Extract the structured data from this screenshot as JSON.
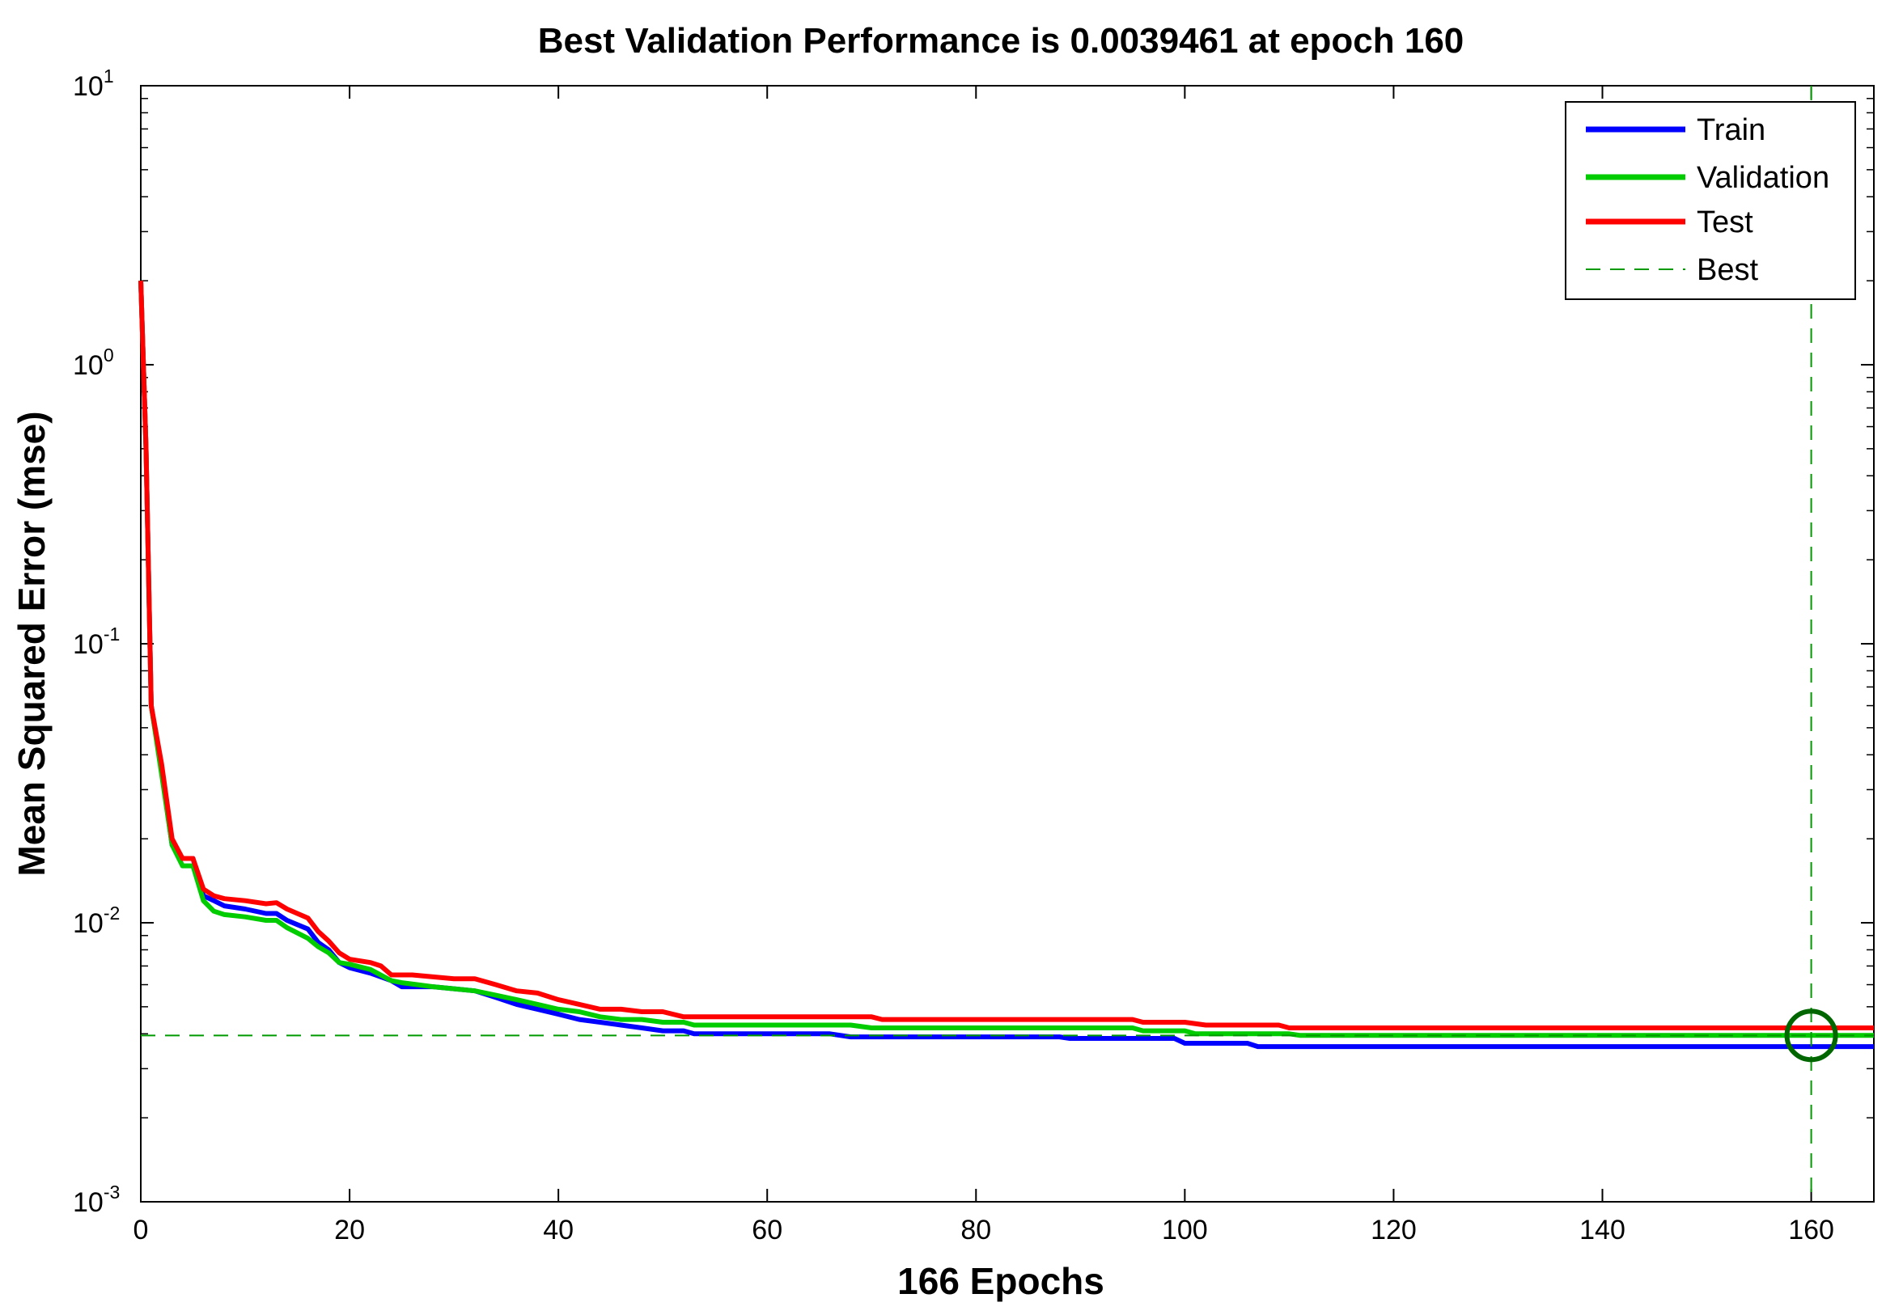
{
  "chart_data": {
    "type": "line",
    "title": "Best Validation Performance is 0.0039461 at epoch 160",
    "xlabel": "166 Epochs",
    "ylabel": "Mean Squared Error  (mse)",
    "xlim": [
      0,
      166
    ],
    "ylim": [
      0.001,
      10
    ],
    "yscale": "log",
    "x_ticks": [
      0,
      20,
      40,
      60,
      80,
      100,
      120,
      140,
      160
    ],
    "x_tick_labels": [
      "0",
      "20",
      "40",
      "60",
      "80",
      "100",
      "120",
      "140",
      "160"
    ],
    "y_ticks": [
      {
        "value": 10,
        "base": "10",
        "exp": "1"
      },
      {
        "value": 1,
        "base": "10",
        "exp": "0"
      },
      {
        "value": 0.1,
        "base": "10",
        "exp": "-1"
      },
      {
        "value": 0.01,
        "base": "10",
        "exp": "-2"
      },
      {
        "value": 0.001,
        "base": "10",
        "exp": "-3"
      }
    ],
    "legend_position": "top-right",
    "series": [
      {
        "name": "Train",
        "color": "#0000ff",
        "points": [
          [
            0,
            2.0
          ],
          [
            0.5,
            0.5
          ],
          [
            1,
            0.06
          ],
          [
            2,
            0.035
          ],
          [
            3,
            0.019
          ],
          [
            4,
            0.017
          ],
          [
            5,
            0.017
          ],
          [
            6,
            0.0125
          ],
          [
            7,
            0.012
          ],
          [
            8,
            0.0115
          ],
          [
            10,
            0.0112
          ],
          [
            12,
            0.0108
          ],
          [
            13,
            0.0108
          ],
          [
            14,
            0.0102
          ],
          [
            16,
            0.0095
          ],
          [
            17,
            0.0085
          ],
          [
            18,
            0.008
          ],
          [
            19,
            0.0072
          ],
          [
            20,
            0.0069
          ],
          [
            22,
            0.0066
          ],
          [
            24,
            0.0062
          ],
          [
            25,
            0.0059
          ],
          [
            28,
            0.0059
          ],
          [
            30,
            0.0058
          ],
          [
            32,
            0.0057
          ],
          [
            34,
            0.0054
          ],
          [
            36,
            0.0051
          ],
          [
            38,
            0.0049
          ],
          [
            40,
            0.0047
          ],
          [
            42,
            0.0045
          ],
          [
            44,
            0.0044
          ],
          [
            46,
            0.0043
          ],
          [
            48,
            0.0042
          ],
          [
            50,
            0.0041
          ],
          [
            52,
            0.0041
          ],
          [
            53,
            0.004
          ],
          [
            60,
            0.004
          ],
          [
            66,
            0.004
          ],
          [
            68,
            0.0039
          ],
          [
            80,
            0.0039
          ],
          [
            88,
            0.0039
          ],
          [
            89,
            0.00385
          ],
          [
            99,
            0.00385
          ],
          [
            100,
            0.0037
          ],
          [
            106,
            0.0037
          ],
          [
            107,
            0.0036
          ],
          [
            166,
            0.0036
          ]
        ]
      },
      {
        "name": "Validation",
        "color": "#00cc00",
        "points": [
          [
            0,
            2.0
          ],
          [
            0.5,
            0.5
          ],
          [
            1,
            0.06
          ],
          [
            2,
            0.034
          ],
          [
            3,
            0.019
          ],
          [
            4,
            0.016
          ],
          [
            5,
            0.016
          ],
          [
            6,
            0.012
          ],
          [
            7,
            0.011
          ],
          [
            8,
            0.0107
          ],
          [
            10,
            0.0105
          ],
          [
            12,
            0.0102
          ],
          [
            13,
            0.0102
          ],
          [
            14,
            0.0096
          ],
          [
            16,
            0.0088
          ],
          [
            17,
            0.0082
          ],
          [
            18,
            0.0078
          ],
          [
            19,
            0.0072
          ],
          [
            20,
            0.0071
          ],
          [
            22,
            0.0068
          ],
          [
            24,
            0.0062
          ],
          [
            25,
            0.0061
          ],
          [
            28,
            0.0059
          ],
          [
            30,
            0.0058
          ],
          [
            32,
            0.0057
          ],
          [
            34,
            0.0055
          ],
          [
            36,
            0.0053
          ],
          [
            38,
            0.0051
          ],
          [
            40,
            0.0049
          ],
          [
            42,
            0.0048
          ],
          [
            44,
            0.0046
          ],
          [
            46,
            0.0045
          ],
          [
            48,
            0.0045
          ],
          [
            50,
            0.0044
          ],
          [
            52,
            0.0044
          ],
          [
            53,
            0.0043
          ],
          [
            68,
            0.0043
          ],
          [
            70,
            0.0042
          ],
          [
            95,
            0.0042
          ],
          [
            96,
            0.0041
          ],
          [
            100,
            0.0041
          ],
          [
            101,
            0.004
          ],
          [
            110,
            0.004
          ],
          [
            111,
            0.00395
          ],
          [
            166,
            0.00395
          ]
        ]
      },
      {
        "name": "Test",
        "color": "#ff0000",
        "points": [
          [
            0,
            2.0
          ],
          [
            0.5,
            0.5
          ],
          [
            1,
            0.06
          ],
          [
            2,
            0.037
          ],
          [
            3,
            0.02
          ],
          [
            4,
            0.017
          ],
          [
            5,
            0.017
          ],
          [
            6,
            0.0132
          ],
          [
            7,
            0.0125
          ],
          [
            8,
            0.0122
          ],
          [
            10,
            0.012
          ],
          [
            12,
            0.0117
          ],
          [
            13,
            0.0118
          ],
          [
            14,
            0.0112
          ],
          [
            16,
            0.0104
          ],
          [
            17,
            0.0093
          ],
          [
            18,
            0.0086
          ],
          [
            19,
            0.0078
          ],
          [
            20,
            0.0074
          ],
          [
            22,
            0.0072
          ],
          [
            23,
            0.007
          ],
          [
            24,
            0.0065
          ],
          [
            26,
            0.0065
          ],
          [
            28,
            0.0064
          ],
          [
            30,
            0.0063
          ],
          [
            32,
            0.0063
          ],
          [
            34,
            0.006
          ],
          [
            36,
            0.0057
          ],
          [
            38,
            0.0056
          ],
          [
            40,
            0.0053
          ],
          [
            42,
            0.0051
          ],
          [
            44,
            0.0049
          ],
          [
            46,
            0.0049
          ],
          [
            48,
            0.0048
          ],
          [
            50,
            0.0048
          ],
          [
            52,
            0.0046
          ],
          [
            70,
            0.0046
          ],
          [
            71,
            0.0045
          ],
          [
            95,
            0.0045
          ],
          [
            96,
            0.0044
          ],
          [
            100,
            0.0044
          ],
          [
            102,
            0.0043
          ],
          [
            109,
            0.0043
          ],
          [
            110,
            0.0042
          ],
          [
            166,
            0.0042
          ]
        ]
      }
    ],
    "best": {
      "name": "Best",
      "color": "#009900",
      "epoch": 160,
      "value": 0.0039461
    }
  }
}
